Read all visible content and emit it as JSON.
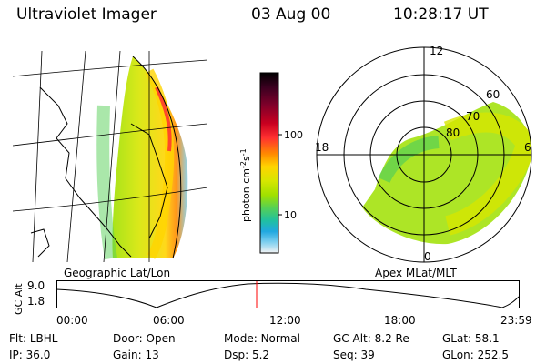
{
  "header": {
    "title": "Ultraviolet Imager",
    "date": "03 Aug 00",
    "time": "10:28:17 UT"
  },
  "left_panel": {
    "caption": "Geographic Lat/Lon"
  },
  "right_panel": {
    "caption": "Apex MLat/MLT",
    "mlt_labels": {
      "top": "12",
      "left": "18",
      "right": "6",
      "bottom": "0"
    },
    "lat_labels": [
      "60",
      "70",
      "80"
    ]
  },
  "colorbar": {
    "label": "photon cm",
    "label_sup1": "-2",
    "label_s": "s",
    "label_sup2": "-1",
    "ticks": [
      "100",
      "10"
    ],
    "colors": [
      "#000000",
      "#3a0020",
      "#80002a",
      "#c80020",
      "#ff3030",
      "#ff8a00",
      "#ffd400",
      "#d6e600",
      "#9fe000",
      "#55d055",
      "#20c0a0",
      "#20a8e0",
      "#7fd0f0",
      "#f4f4f4"
    ]
  },
  "timeline": {
    "ylabel": "GC Alt",
    "yticks": [
      "9.0",
      "1.8"
    ],
    "xticks": [
      "00:00",
      "06:00",
      "12:00",
      "18:00",
      "23:59"
    ]
  },
  "stats": {
    "row1": [
      {
        "label": "Flt:",
        "value": "LBHL"
      },
      {
        "label": "Door:",
        "value": "Open"
      },
      {
        "label": "Mode:",
        "value": "Normal"
      },
      {
        "label": "GC Alt:",
        "value": "8.2 Re"
      },
      {
        "label": "GLat:",
        "value": "58.1"
      }
    ],
    "row2": [
      {
        "label": "IP:",
        "value": "36.0"
      },
      {
        "label": "Gain:",
        "value": "13"
      },
      {
        "label": "Dsp:",
        "value": "5.2"
      },
      {
        "label": "Seq:",
        "value": "39"
      },
      {
        "label": "GLon:",
        "value": "252.5"
      }
    ]
  }
}
